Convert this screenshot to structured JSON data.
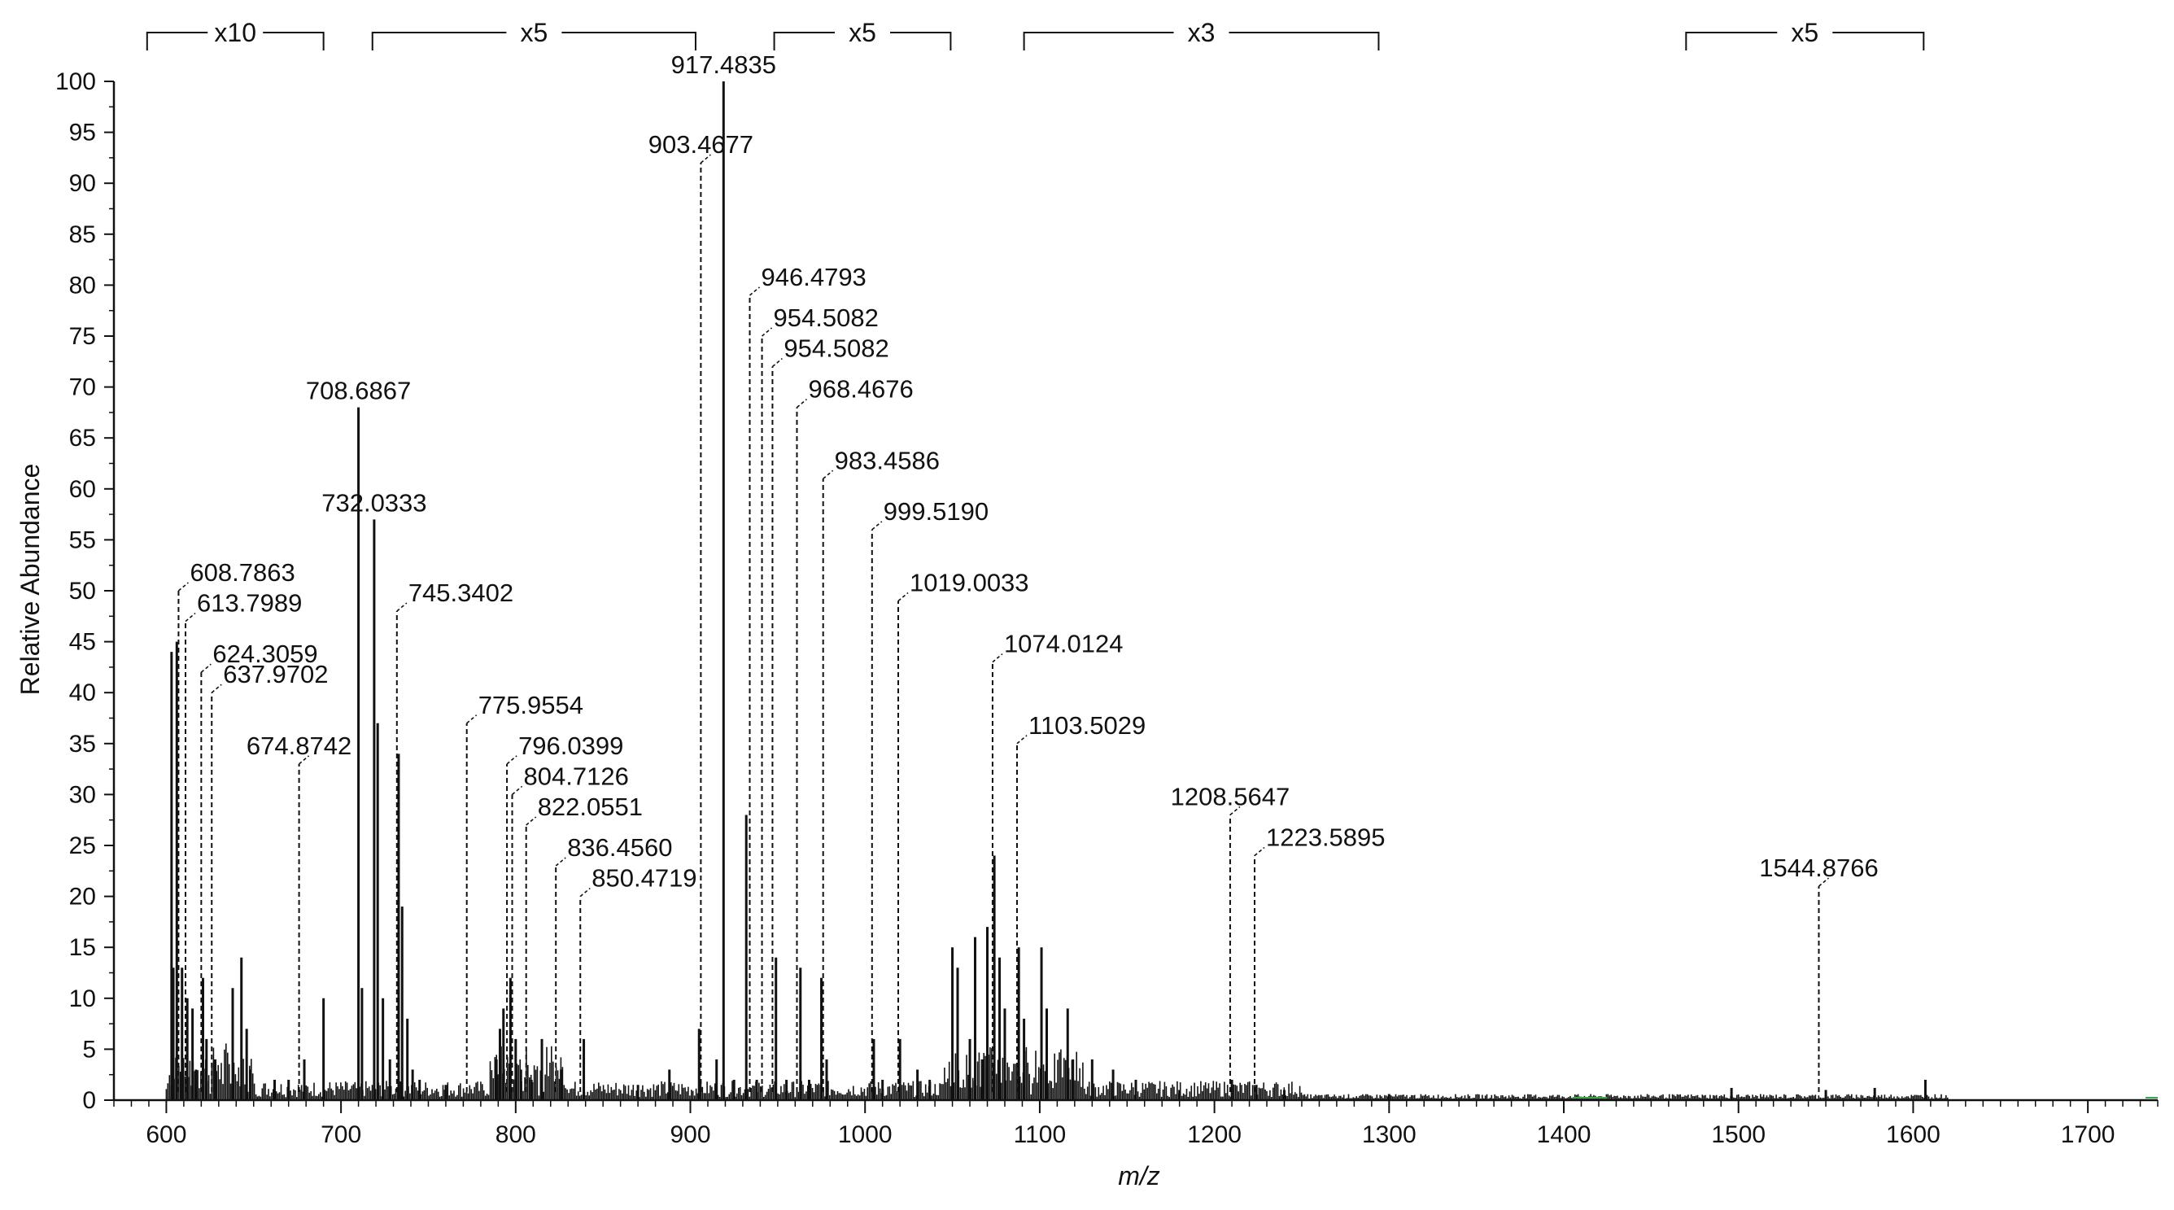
{
  "chart_data": {
    "type": "line",
    "subtype": "mass-spectrum",
    "xlabel": "m/z",
    "ylabel": "Relative Abundance",
    "xlim": [
      570,
      1740
    ],
    "ylim": [
      0,
      100
    ],
    "x_ticks": [
      600,
      700,
      800,
      900,
      1000,
      1100,
      1200,
      1300,
      1400,
      1500,
      1600,
      1700
    ],
    "y_ticks": [
      0,
      5,
      10,
      15,
      20,
      25,
      30,
      35,
      40,
      45,
      50,
      55,
      60,
      65,
      70,
      75,
      80,
      85,
      90,
      95,
      100
    ],
    "zoom_regions": [
      {
        "label": "x10",
        "from": 589,
        "to": 690
      },
      {
        "label": "x5",
        "from": 718,
        "to": 903
      },
      {
        "label": "x5",
        "from": 948,
        "to": 1049
      },
      {
        "label": "x3",
        "from": 1091,
        "to": 1294
      },
      {
        "label": "x5",
        "from": 1470,
        "to": 1606
      }
    ],
    "peaks": [
      {
        "mz": 917.4835,
        "label": "917.4835",
        "x": 919,
        "y": 100,
        "solid": true
      },
      {
        "mz": 903.4677,
        "label": "903.4677",
        "x": 906,
        "y": 92
      },
      {
        "mz": 946.4793,
        "label": "946.4793",
        "x": 934,
        "y": 79
      },
      {
        "mz": 954.5082,
        "label": "954.5082",
        "x": 941,
        "y": 75
      },
      {
        "mz": 954.5082,
        "label": "954.5082",
        "x": 947,
        "y": 72
      },
      {
        "mz": 968.4676,
        "label": "968.4676",
        "x": 961,
        "y": 68
      },
      {
        "mz": 983.4586,
        "label": "983.4586",
        "x": 976,
        "y": 61
      },
      {
        "mz": 999.519,
        "label": "999.5190",
        "x": 1004,
        "y": 56
      },
      {
        "mz": 1019.0033,
        "label": "1019.0033",
        "x": 1019,
        "y": 49
      },
      {
        "mz": 708.6867,
        "label": "708.6867",
        "x": 710,
        "y": 68,
        "solid": true
      },
      {
        "mz": 732.0333,
        "label": "732.0333",
        "x": 719,
        "y": 57,
        "solid": true
      },
      {
        "mz": 745.3402,
        "label": "745.3402",
        "x": 732,
        "y": 48
      },
      {
        "mz": 608.7863,
        "label": "608.7863",
        "x": 607,
        "y": 50
      },
      {
        "mz": 613.7989,
        "label": "613.7989",
        "x": 611,
        "y": 47
      },
      {
        "mz": 624.3059,
        "label": "624.3059",
        "x": 620,
        "y": 42
      },
      {
        "mz": 637.9702,
        "label": "637.9702",
        "x": 626,
        "y": 40
      },
      {
        "mz": 674.8742,
        "label": "674.8742",
        "x": 676,
        "y": 33
      },
      {
        "mz": 775.9554,
        "label": "775.9554",
        "x": 772,
        "y": 37
      },
      {
        "mz": 796.0399,
        "label": "796.0399",
        "x": 795,
        "y": 33
      },
      {
        "mz": 804.7126,
        "label": "804.7126",
        "x": 798,
        "y": 30
      },
      {
        "mz": 822.0551,
        "label": "822.0551",
        "x": 806,
        "y": 27
      },
      {
        "mz": 836.456,
        "label": "836.4560",
        "x": 823,
        "y": 23
      },
      {
        "mz": 850.4719,
        "label": "850.4719",
        "x": 837,
        "y": 20
      },
      {
        "mz": 1074.0124,
        "label": "1074.0124",
        "x": 1073,
        "y": 43
      },
      {
        "mz": 1103.5029,
        "label": "1103.5029",
        "x": 1087,
        "y": 35
      },
      {
        "mz": 1208.5647,
        "label": "1208.5647",
        "x": 1209,
        "y": 28
      },
      {
        "mz": 1223.5895,
        "label": "1223.5895",
        "x": 1223,
        "y": 24
      },
      {
        "mz": 1544.8766,
        "label": "1544.8766",
        "x": 1546,
        "y": 21
      }
    ],
    "unlabeled_peaks": [
      {
        "x": 603,
        "y": 44
      },
      {
        "x": 604,
        "y": 13
      },
      {
        "x": 606,
        "y": 45
      },
      {
        "x": 609,
        "y": 13
      },
      {
        "x": 612,
        "y": 10
      },
      {
        "x": 615,
        "y": 9
      },
      {
        "x": 617,
        "y": 3
      },
      {
        "x": 621,
        "y": 12
      },
      {
        "x": 623,
        "y": 6
      },
      {
        "x": 628,
        "y": 4
      },
      {
        "x": 638,
        "y": 11
      },
      {
        "x": 643,
        "y": 14
      },
      {
        "x": 646,
        "y": 7
      },
      {
        "x": 648,
        "y": 3
      },
      {
        "x": 662,
        "y": 2
      },
      {
        "x": 670,
        "y": 2
      },
      {
        "x": 679,
        "y": 4
      },
      {
        "x": 690,
        "y": 10
      },
      {
        "x": 712,
        "y": 11
      },
      {
        "x": 721,
        "y": 37
      },
      {
        "x": 724,
        "y": 10
      },
      {
        "x": 728,
        "y": 4
      },
      {
        "x": 733,
        "y": 34
      },
      {
        "x": 735,
        "y": 19
      },
      {
        "x": 738,
        "y": 8
      },
      {
        "x": 741,
        "y": 3
      },
      {
        "x": 745,
        "y": 2
      },
      {
        "x": 760,
        "y": 1.5
      },
      {
        "x": 789,
        "y": 4
      },
      {
        "x": 791,
        "y": 7
      },
      {
        "x": 793,
        "y": 9
      },
      {
        "x": 797,
        "y": 12
      },
      {
        "x": 800,
        "y": 6
      },
      {
        "x": 803,
        "y": 3
      },
      {
        "x": 809,
        "y": 2
      },
      {
        "x": 815,
        "y": 6
      },
      {
        "x": 826,
        "y": 3
      },
      {
        "x": 839,
        "y": 6
      },
      {
        "x": 870,
        "y": 1.5
      },
      {
        "x": 888,
        "y": 3
      },
      {
        "x": 905,
        "y": 7
      },
      {
        "x": 915,
        "y": 4
      },
      {
        "x": 925,
        "y": 2
      },
      {
        "x": 932,
        "y": 28
      },
      {
        "x": 938,
        "y": 2
      },
      {
        "x": 949,
        "y": 14
      },
      {
        "x": 955,
        "y": 2
      },
      {
        "x": 963,
        "y": 13
      },
      {
        "x": 968,
        "y": 2
      },
      {
        "x": 975,
        "y": 12
      },
      {
        "x": 978,
        "y": 4
      },
      {
        "x": 1005,
        "y": 6
      },
      {
        "x": 1010,
        "y": 2
      },
      {
        "x": 1020,
        "y": 6
      },
      {
        "x": 1030,
        "y": 3
      },
      {
        "x": 1037,
        "y": 2
      },
      {
        "x": 1050,
        "y": 15
      },
      {
        "x": 1053,
        "y": 13
      },
      {
        "x": 1060,
        "y": 6
      },
      {
        "x": 1063,
        "y": 16
      },
      {
        "x": 1067,
        "y": 4
      },
      {
        "x": 1070,
        "y": 17
      },
      {
        "x": 1074,
        "y": 24
      },
      {
        "x": 1077,
        "y": 14
      },
      {
        "x": 1080,
        "y": 9
      },
      {
        "x": 1088,
        "y": 15
      },
      {
        "x": 1091,
        "y": 8
      },
      {
        "x": 1101,
        "y": 15
      },
      {
        "x": 1104,
        "y": 9
      },
      {
        "x": 1116,
        "y": 9
      },
      {
        "x": 1119,
        "y": 4
      },
      {
        "x": 1130,
        "y": 4
      },
      {
        "x": 1142,
        "y": 3
      },
      {
        "x": 1155,
        "y": 2
      },
      {
        "x": 1180,
        "y": 1
      },
      {
        "x": 1210,
        "y": 2
      },
      {
        "x": 1224,
        "y": 1.5
      },
      {
        "x": 1240,
        "y": 1
      },
      {
        "x": 1300,
        "y": 0.6
      },
      {
        "x": 1496,
        "y": 1.2
      },
      {
        "x": 1550,
        "y": 1
      },
      {
        "x": 1578,
        "y": 1.2
      },
      {
        "x": 1607,
        "y": 2
      }
    ]
  }
}
